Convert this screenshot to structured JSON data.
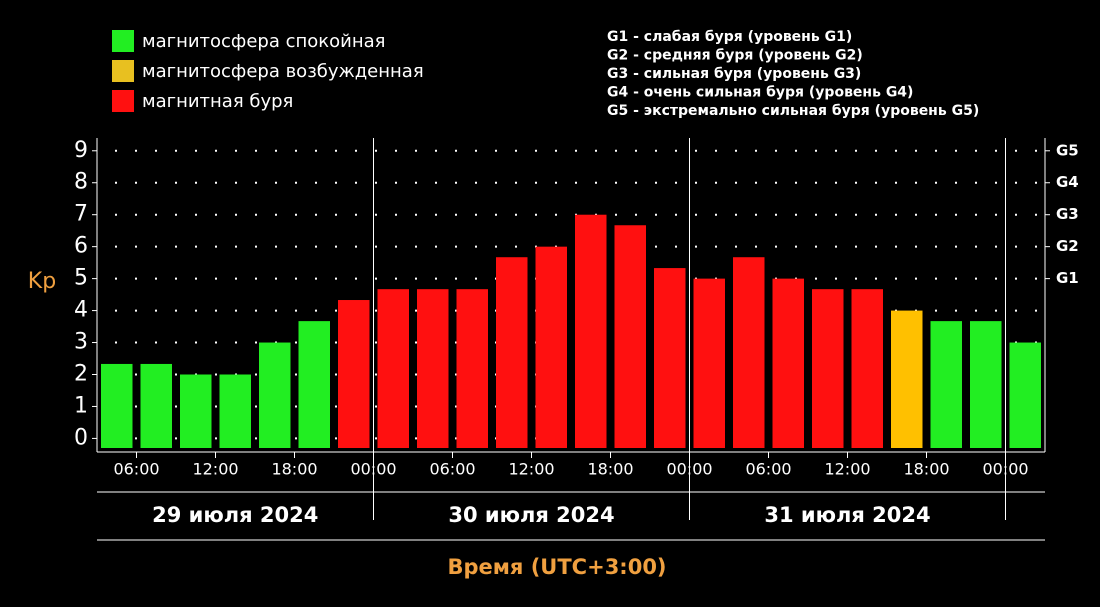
{
  "chart_data": {
    "type": "bar",
    "legend": [
      {
        "name": "магнитосфера спокойная",
        "color": "#22ee22"
      },
      {
        "name": "магнитосфера возбужденная",
        "color": "#e8c020"
      },
      {
        "name": "магнитная буря",
        "color": "#ff1010"
      }
    ],
    "storm_levels": [
      "G1 - слабая буря (уровень G1)",
      "G2 - средняя буря (уровень G2)",
      "G3 - сильная буря (уровень G3)",
      "G4 - очень сильная буря (уровень G4)",
      "G5 - экстремально сильная буря (уровень G5)"
    ],
    "y_label": "Kp",
    "x_label": "Время (UTC+3:00)",
    "categories": [
      null,
      null,
      null,
      null,
      null,
      null,
      null,
      null,
      null,
      null,
      null,
      null,
      null,
      null,
      null,
      null,
      null,
      null,
      null,
      null,
      null,
      null,
      null,
      null
    ],
    "values": [
      2.33,
      2.33,
      2,
      2,
      3,
      3.67,
      4.33,
      4.67,
      4.67,
      4.67,
      5.67,
      6,
      7,
      6.67,
      5.33,
      5,
      5.67,
      5,
      4.67,
      4.67,
      4,
      3.67,
      3.67,
      3
    ],
    "colors": [
      "#22ee22",
      "#22ee22",
      "#22ee22",
      "#22ee22",
      "#22ee22",
      "#22ee22",
      "#ff1010",
      "#ff1010",
      "#ff1010",
      "#ff1010",
      "#ff1010",
      "#ff1010",
      "#ff1010",
      "#ff1010",
      "#ff1010",
      "#ff1010",
      "#ff1010",
      "#ff1010",
      "#ff1010",
      "#ff1010",
      "#ffc000",
      "#22ee22",
      "#22ee22",
      "#22ee22"
    ],
    "time_ticks": [
      "06:00",
      "12:00",
      "18:00",
      "00:00",
      "06:00",
      "12:00",
      "18:00",
      "00:00",
      "06:00",
      "12:00",
      "18:00",
      "00:00"
    ],
    "dates": [
      "29 июля 2024",
      "30 июля 2024",
      "31 июля 2024"
    ],
    "ylim": [
      -0.3,
      9.4
    ],
    "yticks": [
      0,
      1,
      2,
      3,
      4,
      5,
      6,
      7,
      8,
      9
    ],
    "y2lim": [
      -0.3,
      9.4
    ],
    "y2ticks": [
      {
        "value": 5,
        "label": "G1"
      },
      {
        "value": 6,
        "label": "G2"
      },
      {
        "value": 7,
        "label": "G3"
      },
      {
        "value": 8,
        "label": "G4"
      },
      {
        "value": 9,
        "label": "G5"
      }
    ],
    "grid": true
  }
}
